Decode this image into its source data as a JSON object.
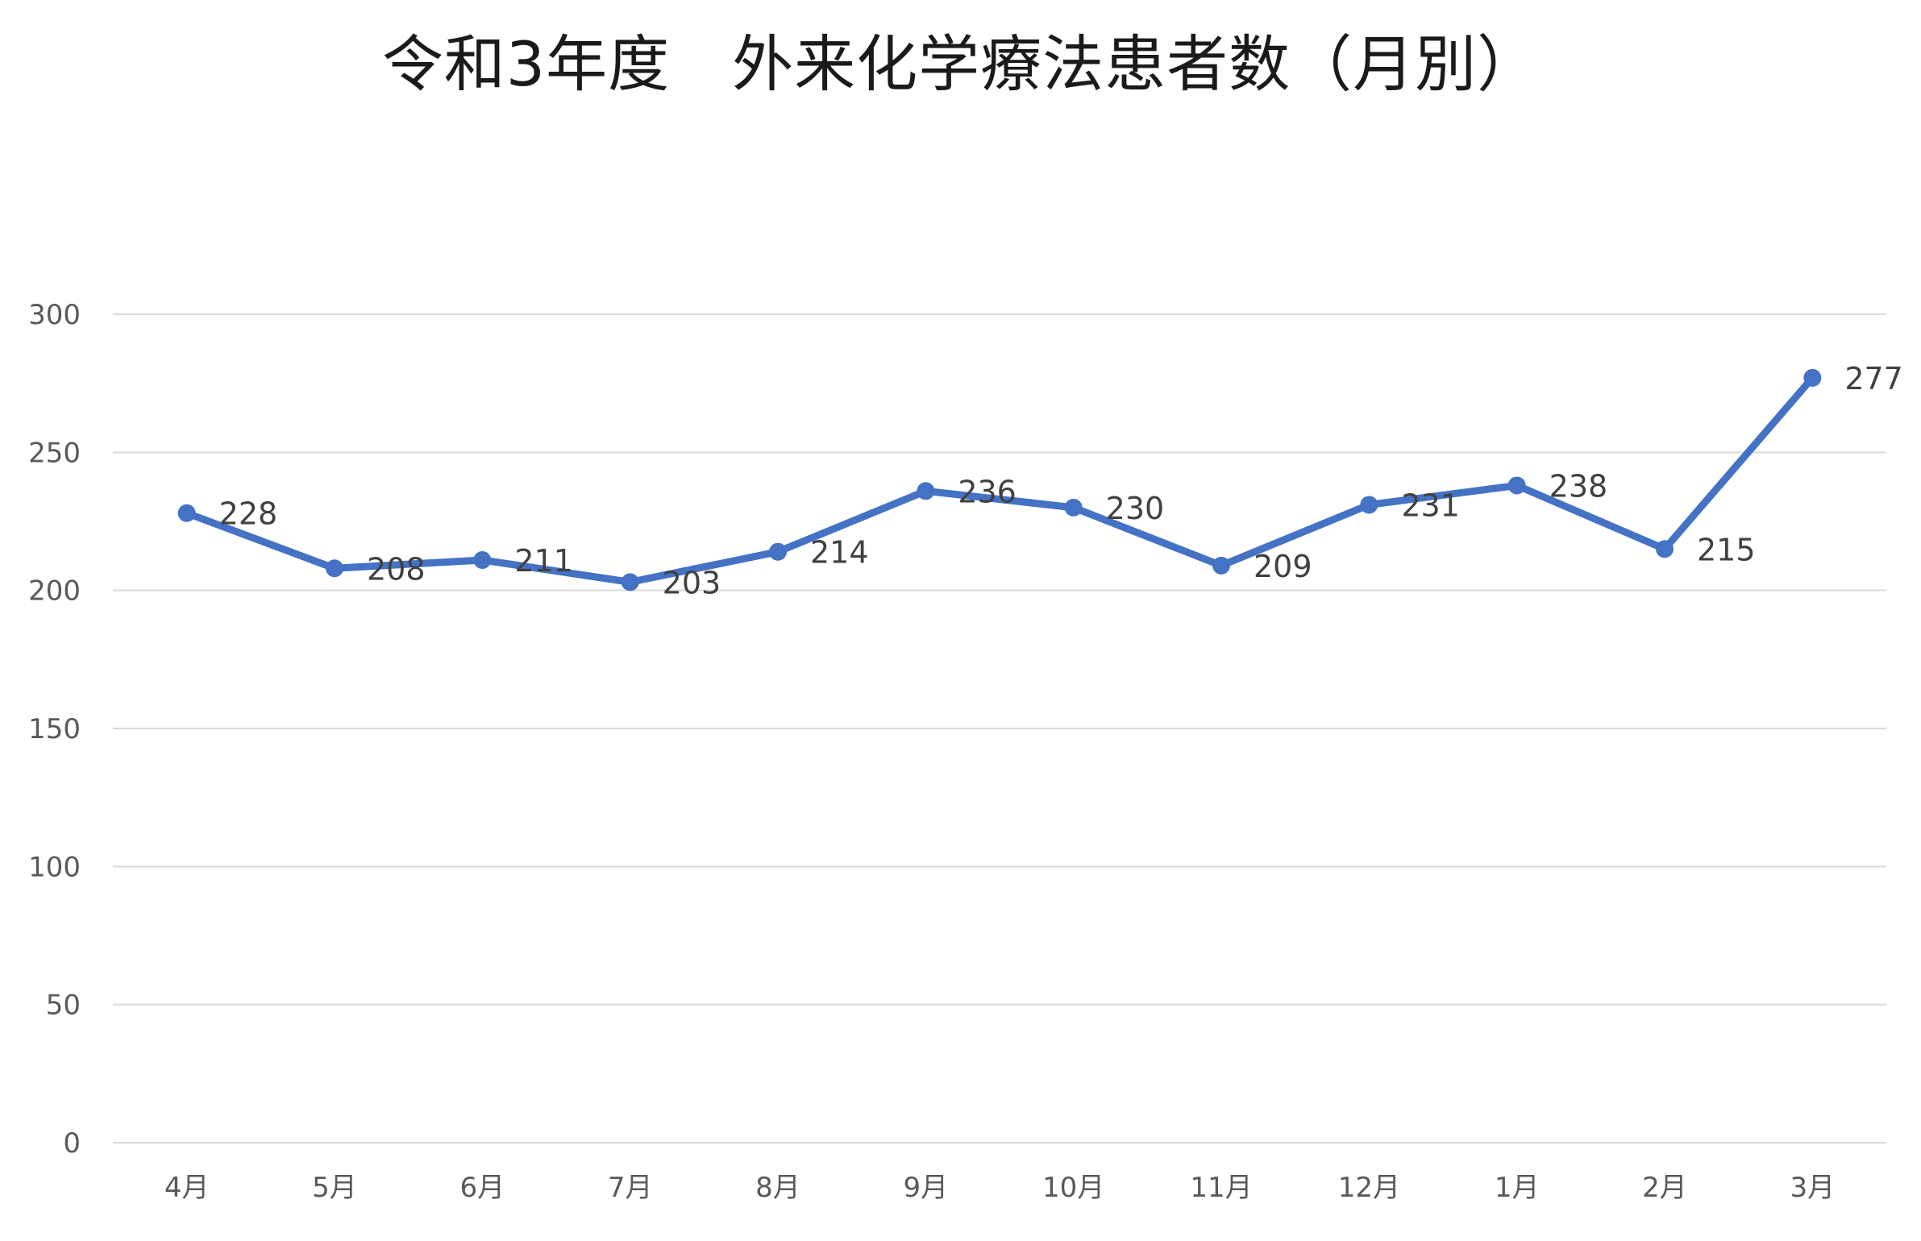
{
  "chart_data": {
    "type": "line",
    "title": "令和3年度　外来化学療法患者数（月別）",
    "xlabel": "",
    "ylabel": "",
    "categories": [
      "4月",
      "5月",
      "6月",
      "7月",
      "8月",
      "9月",
      "10月",
      "11月",
      "12月",
      "1月",
      "2月",
      "3月"
    ],
    "series": [
      {
        "values": [
          228,
          208,
          211,
          203,
          214,
          236,
          230,
          209,
          231,
          238,
          215,
          277
        ]
      }
    ],
    "ylim": [
      0,
      300
    ],
    "yticks": [
      0,
      50,
      100,
      150,
      200,
      250,
      300
    ],
    "grid": true,
    "legend": "none",
    "data_labels": true,
    "color": "#4472C4"
  }
}
